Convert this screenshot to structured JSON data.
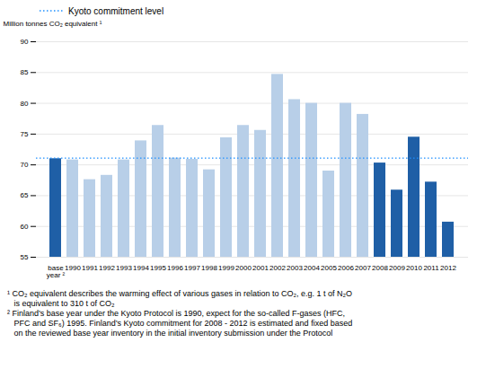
{
  "chart_data": {
    "type": "bar",
    "categories": [
      "base\nyear ²",
      "1990",
      "1991",
      "1992",
      "1993",
      "1994",
      "1995",
      "1996",
      "1997",
      "1998",
      "1999",
      "2000",
      "2001",
      "2002",
      "2003",
      "2004",
      "2005",
      "2006",
      "2007",
      "2008",
      "2009",
      "2010",
      "2011",
      "2012"
    ],
    "values": [
      71.0,
      70.8,
      67.6,
      68.3,
      70.8,
      73.9,
      76.4,
      71.1,
      70.9,
      69.2,
      74.4,
      76.4,
      75.6,
      84.7,
      80.6,
      80.0,
      69.0,
      80.0,
      78.2,
      70.3,
      65.9,
      74.5,
      67.2,
      60.7
    ],
    "colors": [
      "#1f5fa6",
      "#b8cfe8",
      "#b8cfe8",
      "#b8cfe8",
      "#b8cfe8",
      "#b8cfe8",
      "#b8cfe8",
      "#b8cfe8",
      "#b8cfe8",
      "#b8cfe8",
      "#b8cfe8",
      "#b8cfe8",
      "#b8cfe8",
      "#b8cfe8",
      "#b8cfe8",
      "#b8cfe8",
      "#b8cfe8",
      "#b8cfe8",
      "#b8cfe8",
      "#1f5fa6",
      "#1f5fa6",
      "#1f5fa6",
      "#1f5fa6",
      "#1f5fa6"
    ],
    "ylabel": "Million tonnes CO₂ equivalent ¹",
    "ylim": [
      55,
      90
    ],
    "yticks": [
      55,
      60,
      65,
      70,
      75,
      80,
      85,
      90
    ],
    "grid": true,
    "legend": "upper left",
    "reference_lines": [
      {
        "name": "Kyoto commitment level",
        "value": 71.1,
        "color": "#1e90ff",
        "line_style": "dotted"
      }
    ],
    "annotations": [
      "¹ CO₂ equivalent describes the warming effect of various gases in relation to CO₂, e.g. 1 t of N₂O\n   is equivalent to 310 t of CO₂",
      "² Finland’s base year under the Kyoto Protocol is 1990, expect for the so-called F-gases (HFC,\n   PFC and SF₆) 1995. Finland’s Kyoto commitment for 2008 - 2012 is estimated and fixed based\n   on the reviewed base year inventory in the initial inventory submission under the Protocol"
    ]
  }
}
